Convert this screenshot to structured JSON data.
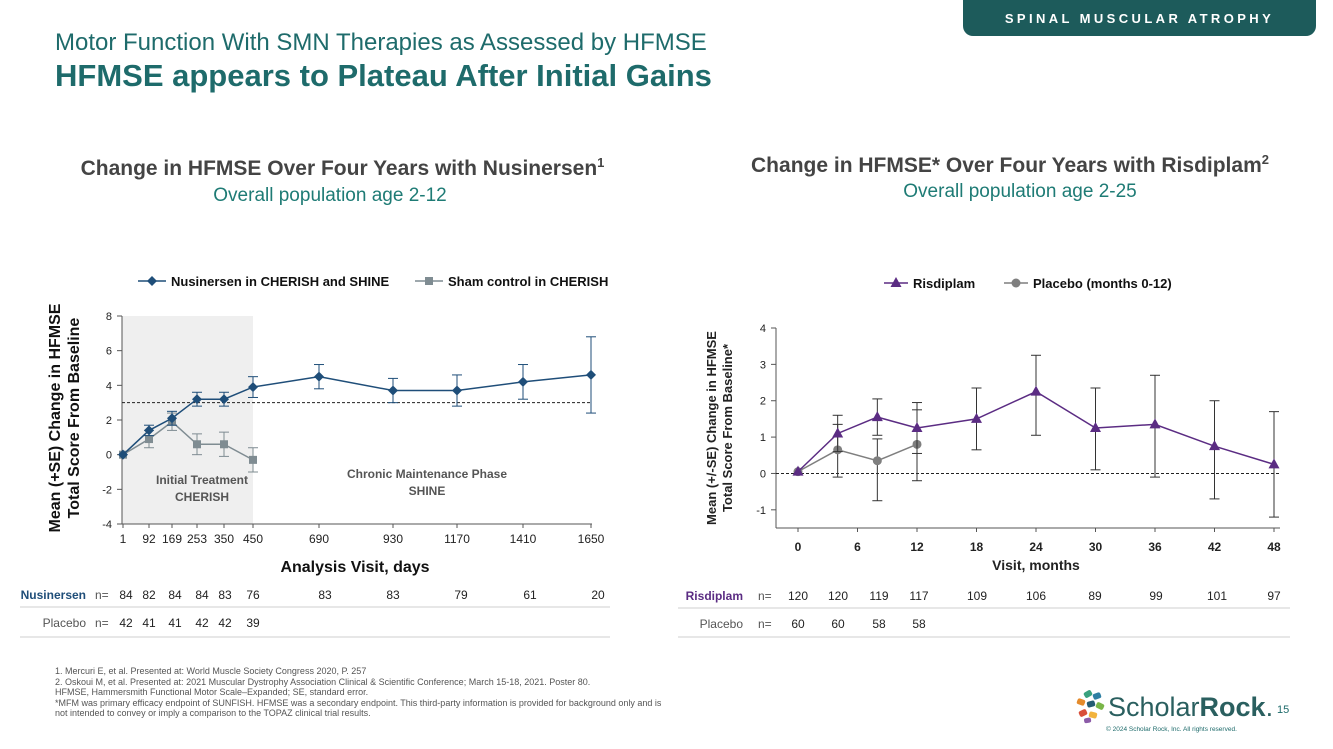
{
  "banner": "SPINAL MUSCULAR ATROPHY",
  "supertitle": "Motor Function With SMN Therapies as Assessed by HFMSE",
  "title": "HFMSE appears to Plateau After Initial Gains",
  "left_chart_title": "Change in HFMSE Over Four Years with Nusinersen",
  "left_chart_title_ref": "1",
  "left_chart_subtitle": "Overall population age 2-12",
  "right_chart_title": "Change in HFMSE* Over Four Years with Risdiplam",
  "right_chart_title_ref": "2",
  "right_chart_subtitle": "Overall population age 2-25",
  "chart_data": [
    {
      "type": "line",
      "xlabel": "Analysis Visit, days",
      "ylabel": [
        "Mean (+SE) Change in HFMSE",
        "Total Score From Baseline"
      ],
      "x_ticks": [
        "1",
        "92",
        "169",
        "253",
        "350",
        "450",
        "690",
        "930",
        "1170",
        "1410",
        "1650"
      ],
      "ylim": [
        -4,
        8
      ],
      "y_ticks": [
        "-4",
        "-2",
        "0",
        "2",
        "4",
        "6",
        "8"
      ],
      "reference_line_y": 3,
      "shaded_region_label": [
        "Initial Treatment",
        "CHERISH"
      ],
      "phase_label": [
        "Chronic Maintenance Phase",
        "SHINE"
      ],
      "series": [
        {
          "name": "Nusinersen in CHERISH and SHINE",
          "color": "#1f4e79",
          "marker": "diamond",
          "points": [
            {
              "x": "1",
              "y": 0.0,
              "lo": 0.0,
              "hi": 0.0
            },
            {
              "x": "92",
              "y": 1.4,
              "lo": 1.1,
              "hi": 1.7
            },
            {
              "x": "169",
              "y": 2.1,
              "lo": 1.7,
              "hi": 2.5
            },
            {
              "x": "253",
              "y": 3.2,
              "lo": 2.8,
              "hi": 3.6
            },
            {
              "x": "350",
              "y": 3.2,
              "lo": 2.8,
              "hi": 3.6
            },
            {
              "x": "450",
              "y": 3.9,
              "lo": 3.3,
              "hi": 4.5
            },
            {
              "x": "690",
              "y": 4.5,
              "lo": 3.8,
              "hi": 5.2
            },
            {
              "x": "930",
              "y": 3.7,
              "lo": 3.0,
              "hi": 4.4
            },
            {
              "x": "1170",
              "y": 3.7,
              "lo": 2.8,
              "hi": 4.6
            },
            {
              "x": "1410",
              "y": 4.2,
              "lo": 3.2,
              "hi": 5.2
            },
            {
              "x": "1650",
              "y": 4.6,
              "lo": 2.4,
              "hi": 6.8
            }
          ]
        },
        {
          "name": "Sham control in CHERISH",
          "color": "#7f8c92",
          "marker": "square",
          "points": [
            {
              "x": "1",
              "y": 0.0,
              "lo": 0.0,
              "hi": 0.0
            },
            {
              "x": "92",
              "y": 0.9,
              "lo": 0.4,
              "hi": 1.4
            },
            {
              "x": "169",
              "y": 1.9,
              "lo": 1.4,
              "hi": 2.4
            },
            {
              "x": "253",
              "y": 0.6,
              "lo": 0.0,
              "hi": 1.2
            },
            {
              "x": "350",
              "y": 0.6,
              "lo": -0.1,
              "hi": 1.3
            },
            {
              "x": "450",
              "y": -0.3,
              "lo": -1.0,
              "hi": 0.4
            }
          ]
        }
      ],
      "n_table": [
        {
          "label": "Nusinersen",
          "n_label": "n=",
          "values": [
            "84",
            "82",
            "84",
            "84",
            "83",
            "76",
            "83",
            "83",
            "79",
            "61",
            "20"
          ]
        },
        {
          "label": "Placebo",
          "n_label": "n=",
          "values": [
            "42",
            "41",
            "41",
            "42",
            "42",
            "39"
          ]
        }
      ]
    },
    {
      "type": "line",
      "xlabel": "Visit, months",
      "ylabel": [
        "Mean (+/-SE) Change in HFMSE",
        "Total Score From Baseline*"
      ],
      "x": [
        0,
        6,
        12,
        18,
        24,
        30,
        36,
        42,
        48
      ],
      "xlim": [
        -2,
        48
      ],
      "ylim": [
        -1.5,
        4
      ],
      "y_ticks": [
        "-1",
        "0",
        "1",
        "2",
        "3",
        "4"
      ],
      "reference_line_y": 0,
      "series": [
        {
          "name": "Risdiplam",
          "color": "#5b2c83",
          "marker": "triangle",
          "points": [
            {
              "x": 0,
              "y": 0.05,
              "lo": 0.05,
              "hi": 0.05
            },
            {
              "x": 4,
              "y": 1.1,
              "lo": 0.6,
              "hi": 1.6
            },
            {
              "x": 8,
              "y": 1.55,
              "lo": 1.05,
              "hi": 2.05
            },
            {
              "x": 12,
              "y": 1.25,
              "lo": 0.55,
              "hi": 1.95
            },
            {
              "x": 18,
              "y": 1.5,
              "lo": 0.65,
              "hi": 2.35
            },
            {
              "x": 24,
              "y": 2.25,
              "lo": 1.05,
              "hi": 3.25
            },
            {
              "x": 30,
              "y": 1.25,
              "lo": 0.1,
              "hi": 2.35
            },
            {
              "x": 36,
              "y": 1.35,
              "lo": -0.1,
              "hi": 2.7
            },
            {
              "x": 42,
              "y": 0.75,
              "lo": -0.7,
              "hi": 2.0
            },
            {
              "x": 48,
              "y": 0.25,
              "lo": -1.2,
              "hi": 1.7
            }
          ]
        },
        {
          "name": "Placebo (months 0-12)",
          "color": "#7f7f7f",
          "marker": "circle",
          "points": [
            {
              "x": 0,
              "y": 0.05,
              "lo": 0.05,
              "hi": 0.05
            },
            {
              "x": 4,
              "y": 0.65,
              "lo": -0.1,
              "hi": 1.35
            },
            {
              "x": 8,
              "y": 0.35,
              "lo": -0.75,
              "hi": 0.95
            },
            {
              "x": 12,
              "y": 0.8,
              "lo": -0.2,
              "hi": 1.75
            }
          ]
        }
      ],
      "n_table": [
        {
          "label": "Risdiplam",
          "n_label": "n=",
          "values": [
            "120",
            "120",
            "119",
            "117",
            "109",
            "106",
            "89",
            "99",
            "101",
            "97"
          ]
        },
        {
          "label": "Placebo",
          "n_label": "n=",
          "values": [
            "60",
            "60",
            "58",
            "58"
          ]
        }
      ]
    }
  ],
  "footnotes": [
    "1. Mercuri E, et al. Presented at: World Muscle Society Congress 2020, P. 257",
    "2. Oskoui M, et al. Presented at: 2021 Muscular Dystrophy Association Clinical & Scientific Conference; March 15-18, 2021. Poster 80.",
    "HFMSE, Hammersmith Functional Motor Scale–Expanded; SE, standard error.",
    "*MFM was primary efficacy endpoint of SUNFISH. HFMSE was a secondary endpoint. This third-party information is provided for background only and is",
    "not intended to convey or imply a comparison to the TOPAZ clinical trial results."
  ],
  "logo": {
    "part1": "Scholar",
    "part2": "Rock",
    "mark": "."
  },
  "page_number": "15",
  "copyright": "© 2024 Scholar Rock, Inc. All rights reserved.",
  "colors": {
    "brand": "#1e6b6b",
    "nusinersen": "#1f4e79",
    "risdiplam": "#5b2c83"
  }
}
